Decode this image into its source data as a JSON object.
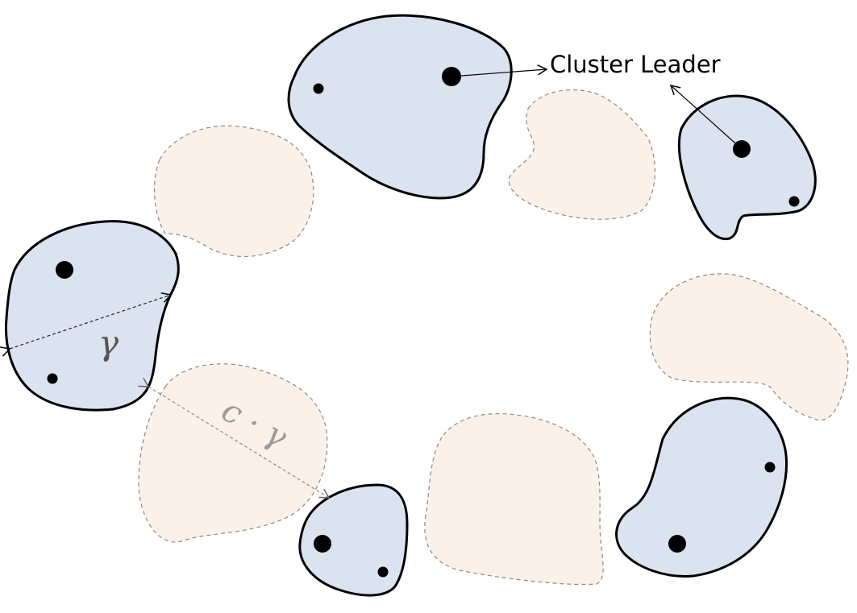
{
  "labels": {
    "cluster_leader": "Cluster Leader",
    "gamma": "γ",
    "c_gamma": "c · γ"
  },
  "colors": {
    "cluster_fill": "#dbe3f0",
    "gap_fill": "#fbf1e8",
    "outline": "#000000"
  }
}
